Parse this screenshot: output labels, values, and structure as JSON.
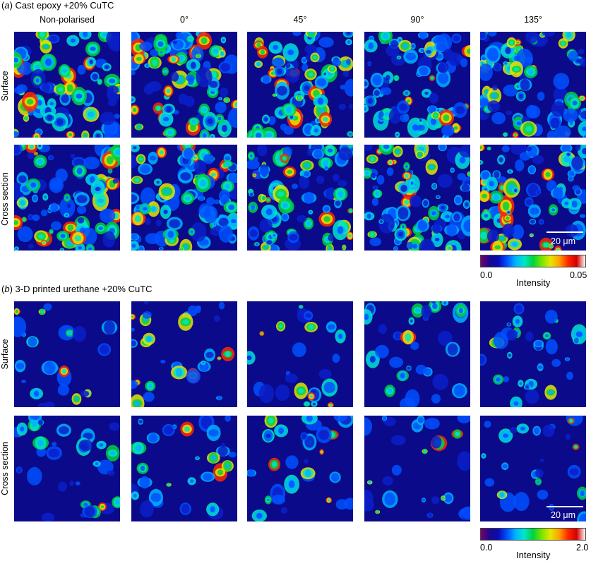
{
  "figure": {
    "section_a": {
      "letter": "a",
      "title": "Cast epoxy +20% CuTC",
      "columns": [
        "Non-polarised",
        "0°",
        "45°",
        "90°",
        "135°"
      ],
      "rows": [
        "Surface",
        "Cross section"
      ],
      "scale_bar": "20 μm",
      "colorbar": {
        "min": "0.0",
        "max": "0.05",
        "label": "Intensity"
      }
    },
    "section_b": {
      "letter": "b",
      "title": "3-D printed urethane +20% CuTC",
      "rows": [
        "Surface",
        "Cross section"
      ],
      "scale_bar": "20 μm",
      "colorbar": {
        "min": "0.0",
        "max": "2.0",
        "label": "Intensity"
      }
    },
    "colormap": [
      "#7a006e",
      "#1a0a8a",
      "#0a0ab4",
      "#0050ff",
      "#00b4ff",
      "#00e6c8",
      "#00d23c",
      "#78e600",
      "#e6e600",
      "#ffa000",
      "#ff2800",
      "#d20000",
      "#ffffff"
    ]
  }
}
